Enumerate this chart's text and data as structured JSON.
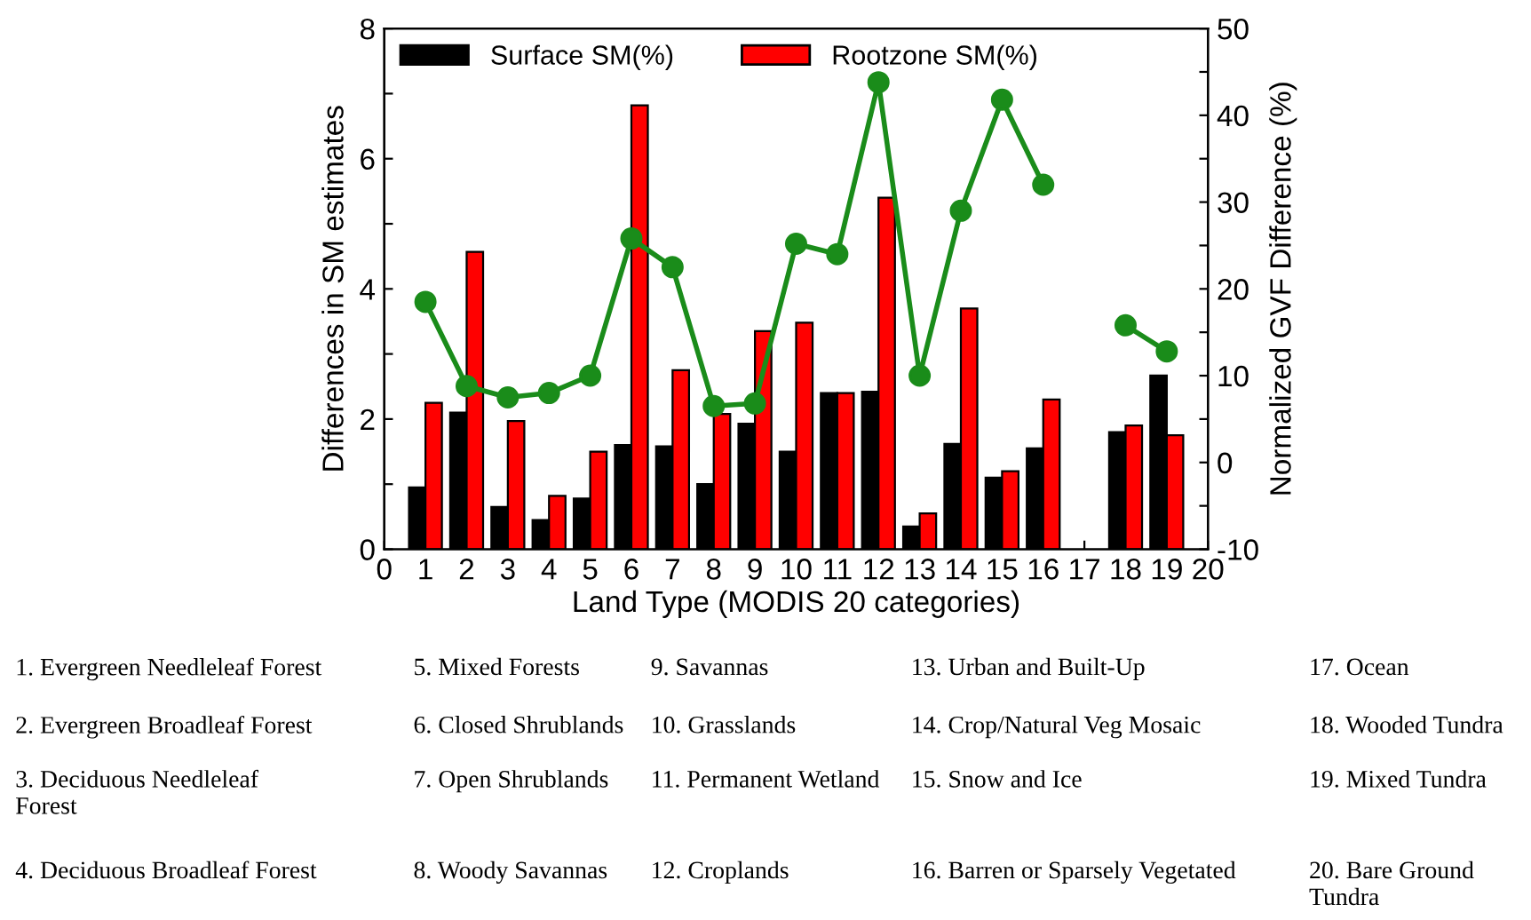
{
  "chart_data": {
    "type": "bar",
    "x": [
      1,
      2,
      3,
      4,
      5,
      6,
      7,
      8,
      9,
      10,
      11,
      12,
      13,
      14,
      15,
      16,
      17,
      18,
      19
    ],
    "xlabel": "Land Type (MODIS 20 categories)",
    "ylabel": "Differences in SM estimates",
    "y2label": "Normalized GVF Difference (%)",
    "xlim": [
      0,
      20
    ],
    "xticks": [
      0,
      1,
      2,
      3,
      4,
      5,
      6,
      7,
      8,
      9,
      10,
      11,
      12,
      13,
      14,
      15,
      16,
      17,
      18,
      19,
      20
    ],
    "ylim": [
      0,
      8
    ],
    "yticks": [
      0,
      {
        "value": 1,
        "label": null
      },
      2,
      {
        "value": 3,
        "label": null
      },
      4,
      {
        "value": 5,
        "label": null
      },
      6,
      {
        "value": 7,
        "label": null
      },
      8
    ],
    "y2lim": [
      -10,
      50
    ],
    "y2ticks": [
      -10,
      {
        "value": -5,
        "label": null
      },
      0,
      {
        "value": 5,
        "label": null
      },
      10,
      {
        "value": 15,
        "label": null
      },
      20,
      {
        "value": 25,
        "label": null
      },
      30,
      {
        "value": 35,
        "label": null
      },
      40,
      {
        "value": 45,
        "label": null
      },
      50
    ],
    "legend": "top left",
    "grid": false,
    "series": [
      {
        "name": "Surface SM(%)",
        "color": "#000000",
        "values": [
          0.95,
          2.1,
          0.65,
          0.45,
          0.78,
          1.6,
          1.58,
          1.0,
          1.93,
          1.5,
          2.4,
          2.42,
          0.35,
          1.62,
          1.1,
          1.55,
          null,
          1.8,
          2.67
        ]
      },
      {
        "name": "Rootzone SM(%)",
        "color": "#ff0000",
        "values": [
          2.25,
          4.57,
          1.97,
          0.82,
          1.5,
          6.82,
          2.75,
          2.08,
          3.35,
          3.48,
          2.4,
          5.4,
          0.55,
          3.7,
          1.2,
          2.3,
          null,
          1.9,
          1.75
        ]
      },
      {
        "type": "line",
        "axis": "y2",
        "color": "#1a8c1a",
        "marker": "circle",
        "line_style": "solid",
        "values": [
          18.5,
          8.8,
          7.5,
          8,
          10,
          25.8,
          22.5,
          6.5,
          6.8,
          25.2,
          24,
          43.8,
          10,
          29,
          41.8,
          32,
          null,
          15.8,
          12.8
        ]
      }
    ],
    "annotations": [
      "1. Evergreen Needleleaf Forest",
      "2. Evergreen Broadleaf Forest",
      "3. Deciduous Needleleaf\nForest",
      "4. Deciduous Broadleaf Forest",
      "5. Mixed Forests",
      "6. Closed Shrublands",
      "7. Open Shrublands",
      "8. Woody Savannas",
      "9. Savannas",
      "10. Grasslands",
      "11. Permanent Wetland",
      "12. Croplands",
      "13. Urban and Built-Up",
      "14. Crop/Natural Veg Mosaic",
      "15. Snow and Ice",
      "16. Barren or Sparsely Vegetated",
      "17. Ocean",
      "18. Wooded Tundra",
      "19. Mixed Tundra",
      "20. Bare Ground\nTundra"
    ]
  }
}
